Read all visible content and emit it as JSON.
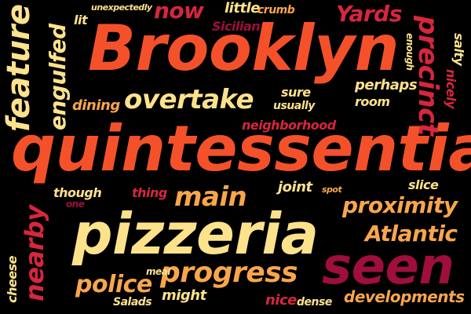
{
  "palette": {
    "background": "#000000",
    "red_orange": "#f4512b",
    "orange": "#f77a2f",
    "light_orange": "#f9a64b",
    "pale_yellow": "#fde28c",
    "red": "#d7263d",
    "dark_red": "#9e0f3b",
    "maroon": "#7a0c2e"
  },
  "words": {
    "brooklyn": "Brooklyn",
    "quintessential": "quintessential",
    "pizzeria": "pizzeria",
    "seen": "seen",
    "overtake": "overtake",
    "main": "main",
    "progress": "progress",
    "proximity": "proximity",
    "atlantic": "Atlantic",
    "police": "police",
    "developments": "developments",
    "feature": "feature",
    "engulfed": "engulfed",
    "nearby": "nearby",
    "precinct": "precinct",
    "now": "now",
    "yards": "Yards",
    "neighborhood": "neighborhood",
    "perhaps": "perhaps",
    "room": "room",
    "sure": "sure",
    "usually": "usually",
    "dining": "dining",
    "little": "little",
    "crumb": "crumb",
    "sicilian": "Sicilian",
    "unexpectedly": "unexpectedly",
    "lit": "lit",
    "enough": "enough",
    "nicely": "nicely",
    "salty": "salty",
    "though": "though",
    "one": "one",
    "thing": "thing",
    "joint": "joint",
    "spot": "spot",
    "slice": "slice",
    "cheese": "cheese",
    "meal": "meal",
    "might": "might",
    "salads": "Salads",
    "nice": "nice",
    "dense": "dense"
  }
}
